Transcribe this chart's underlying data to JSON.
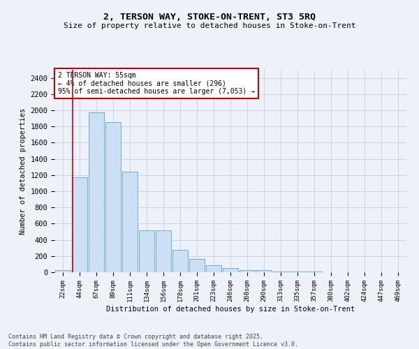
{
  "title1": "2, TERSON WAY, STOKE-ON-TRENT, ST3 5RQ",
  "title2": "Size of property relative to detached houses in Stoke-on-Trent",
  "xlabel": "Distribution of detached houses by size in Stoke-on-Trent",
  "ylabel": "Number of detached properties",
  "categories": [
    "22sqm",
    "44sqm",
    "67sqm",
    "89sqm",
    "111sqm",
    "134sqm",
    "156sqm",
    "178sqm",
    "201sqm",
    "223sqm",
    "246sqm",
    "268sqm",
    "290sqm",
    "313sqm",
    "335sqm",
    "357sqm",
    "380sqm",
    "402sqm",
    "424sqm",
    "447sqm",
    "469sqm"
  ],
  "values": [
    22,
    1175,
    1975,
    1850,
    1245,
    515,
    515,
    275,
    160,
    90,
    50,
    30,
    30,
    10,
    5,
    5,
    3,
    2,
    2,
    1,
    1
  ],
  "bar_color": "#ccdff5",
  "bar_edge_color": "#6aaed6",
  "vline_color": "#cc0000",
  "vline_pos": 0.575,
  "annotation_text": "2 TERSON WAY: 55sqm\n← 4% of detached houses are smaller (296)\n95% of semi-detached houses are larger (7,053) →",
  "annotation_box_color": "#ffffff",
  "annotation_box_edge": "#cc0000",
  "ylim": [
    0,
    2500
  ],
  "yticks": [
    0,
    200,
    400,
    600,
    800,
    1000,
    1200,
    1400,
    1600,
    1800,
    2000,
    2200,
    2400
  ],
  "footer1": "Contains HM Land Registry data © Crown copyright and database right 2025.",
  "footer2": "Contains public sector information licensed under the Open Government Licence v3.0.",
  "grid_color": "#c8d4e8",
  "bg_color": "#edf2f9"
}
